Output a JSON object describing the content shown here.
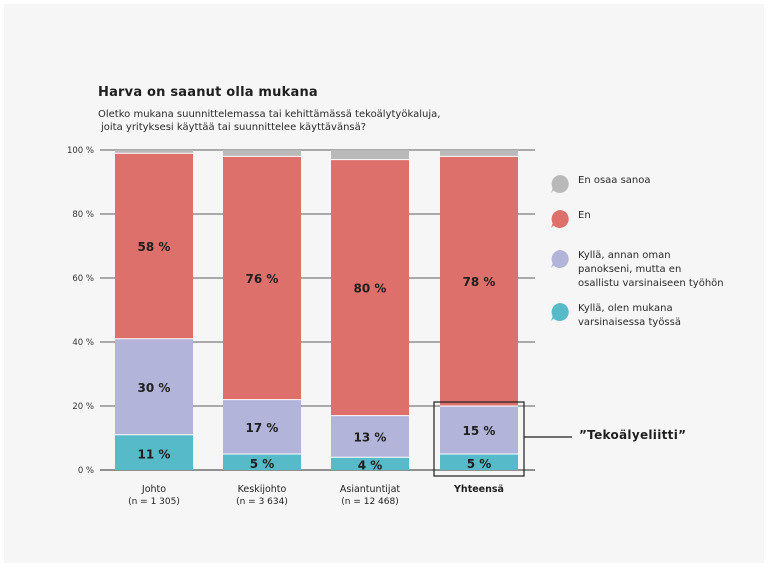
{
  "chart_data": {
    "type": "bar",
    "stacked": true,
    "title": "Harva on saanut olla mukana",
    "subtitle": [
      "Oletko mukana suunnittelemassa tai kehittämässä tekoälytyökaluja,",
      "joita yrityksesi käyttää tai suunnittelee käyttävänsä?"
    ],
    "categories": [
      {
        "name": "Johto",
        "n": "(n = 1 305)",
        "bold": false
      },
      {
        "name": "Keskijohto",
        "n": "(n = 3 634)",
        "bold": false
      },
      {
        "name": "Asiantuntijat",
        "n": "(n = 12 468)",
        "bold": false
      },
      {
        "name": "Yhteensä",
        "n": "",
        "bold": true
      }
    ],
    "series": [
      {
        "name": "Kyllä, olen mukana varsinaisessa työssä",
        "color": "#56bac9",
        "values": [
          11,
          5,
          4,
          5
        ],
        "labels": [
          "11 %",
          "5 %",
          "4 %",
          "5 %"
        ]
      },
      {
        "name": "Kyllä, annan oman panokseni, mutta en osallistu varsinaiseen työhön",
        "color": "#b3b4d9",
        "values": [
          30,
          17,
          13,
          15
        ],
        "labels": [
          "30 %",
          "17 %",
          "13 %",
          "15 %"
        ]
      },
      {
        "name": "En",
        "color": "#de706b",
        "values": [
          58,
          76,
          80,
          78
        ],
        "labels": [
          "58 %",
          "76 %",
          "80 %",
          "78 %"
        ]
      },
      {
        "name": "En osaa sanoa",
        "color": "#b9b9b9",
        "values": [
          1,
          2,
          3,
          2
        ],
        "labels": [
          "",
          "",
          "",
          ""
        ]
      }
    ],
    "yticks": [
      "0 %",
      "20 %",
      "40 %",
      "60 %",
      "80 %",
      "100 %"
    ],
    "ylim": [
      0,
      100
    ],
    "grid": true,
    "legend_position": "right",
    "highlight": {
      "category": "Yhteensä",
      "label": "”Tekoälyeliitti”"
    }
  },
  "legend": [
    {
      "label": "En osaa sanoa",
      "color": "#b9b9b9",
      "icon": "speech-bubble-icon"
    },
    {
      "label": "En",
      "color": "#de706b",
      "icon": "speech-bubble-icon"
    },
    {
      "label": "Kyllä, annan oman\npanokseni, mutta en\nosallistu varsinaiseen työhön",
      "color": "#b3b4d9",
      "icon": "speech-bubble-icon"
    },
    {
      "label": "Kyllä, olen mukana\nvarsinaisessa työssä",
      "color": "#56bac9",
      "icon": "speech-bubble-icon"
    }
  ]
}
